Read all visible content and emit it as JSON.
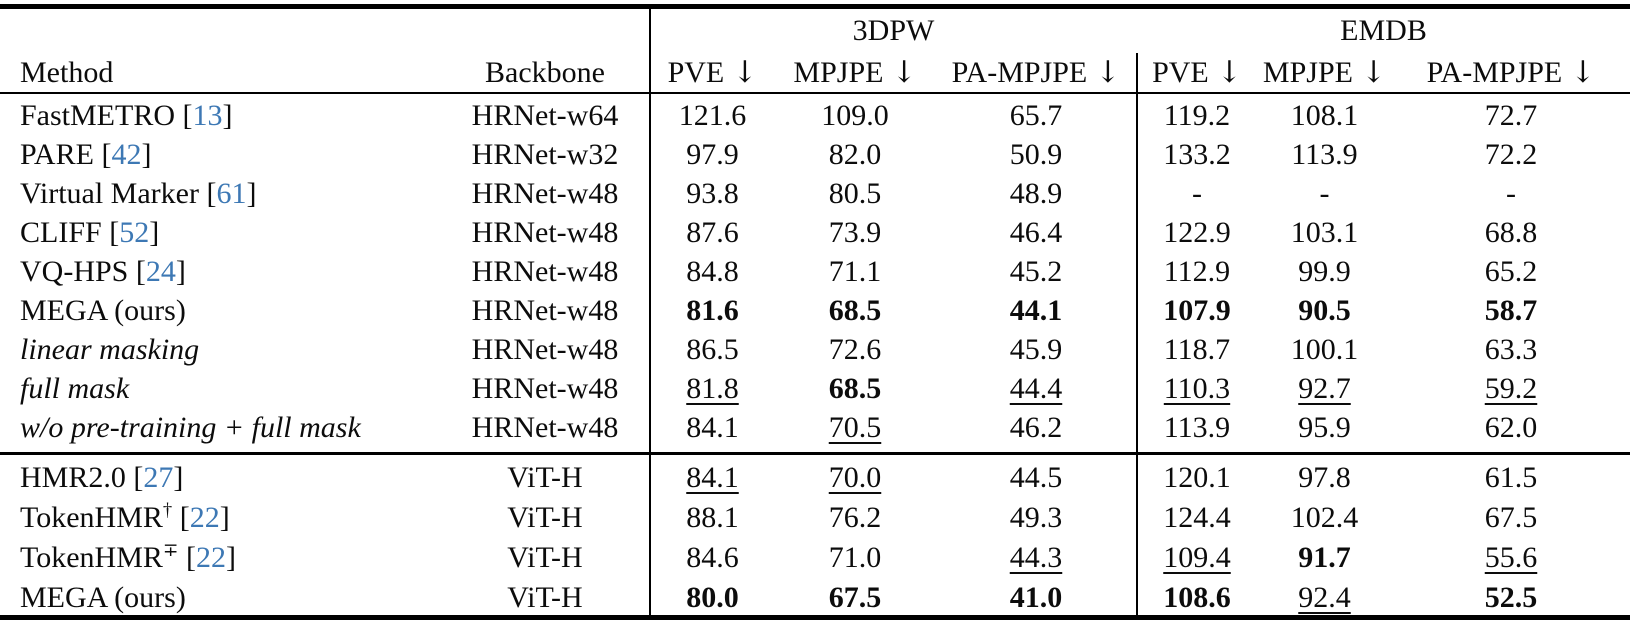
{
  "colors": {
    "citation_link": "#3d78b4",
    "text": "#0c0c0c",
    "background": "#ffffff",
    "rule": "#000000"
  },
  "table": {
    "group_headers": [
      {
        "label": "3DPW"
      },
      {
        "label": "EMDB"
      }
    ],
    "columns": {
      "method": "Method",
      "backbone": "Backbone",
      "down_arrow": "↓",
      "metric_labels": [
        "PVE",
        "MPJPE",
        "PA-MPJPE",
        "PVE",
        "MPJPE",
        "PA-MPJPE"
      ]
    },
    "sections": [
      {
        "rows": [
          {
            "method": "FastMETRO",
            "cite": "13",
            "backbone": "HRNet-w64",
            "values": [
              "121.6",
              "109.0",
              "65.7",
              "119.2",
              "108.1",
              "72.7"
            ],
            "styles": [
              "n",
              "n",
              "n",
              "n",
              "n",
              "n"
            ]
          },
          {
            "method": "PARE",
            "cite": "42",
            "backbone": "HRNet-w32",
            "values": [
              "97.9",
              "82.0",
              "50.9",
              "133.2",
              "113.9",
              "72.2"
            ],
            "styles": [
              "n",
              "n",
              "n",
              "n",
              "n",
              "n"
            ]
          },
          {
            "method": "Virtual Marker",
            "cite": "61",
            "backbone": "HRNet-w48",
            "values": [
              "93.8",
              "80.5",
              "48.9",
              "-",
              "-",
              "-"
            ],
            "styles": [
              "n",
              "n",
              "n",
              "n",
              "n",
              "n"
            ]
          },
          {
            "method": "CLIFF",
            "cite": "52",
            "backbone": "HRNet-w48",
            "values": [
              "87.6",
              "73.9",
              "46.4",
              "122.9",
              "103.1",
              "68.8"
            ],
            "styles": [
              "n",
              "n",
              "n",
              "n",
              "n",
              "n"
            ]
          },
          {
            "method": "VQ-HPS",
            "cite": "24",
            "backbone": "HRNet-w48",
            "values": [
              "84.8",
              "71.1",
              "45.2",
              "112.9",
              "99.9",
              "65.2"
            ],
            "styles": [
              "n",
              "n",
              "n",
              "n",
              "n",
              "n"
            ]
          },
          {
            "method": "MEGA (ours)",
            "backbone": "HRNet-w48",
            "values": [
              "81.6",
              "68.5",
              "44.1",
              "107.9",
              "90.5",
              "58.7"
            ],
            "styles": [
              "b",
              "b",
              "b",
              "b",
              "b",
              "b"
            ]
          },
          {
            "method": "linear masking",
            "italic": true,
            "indent": true,
            "backbone": "HRNet-w48",
            "values": [
              "86.5",
              "72.6",
              "45.9",
              "118.7",
              "100.1",
              "63.3"
            ],
            "styles": [
              "n",
              "n",
              "n",
              "n",
              "n",
              "n"
            ]
          },
          {
            "method": "full mask",
            "italic": true,
            "indent": true,
            "backbone": "HRNet-w48",
            "values": [
              "81.8",
              "68.5",
              "44.4",
              "110.3",
              "92.7",
              "59.2"
            ],
            "styles": [
              "u",
              "b",
              "u",
              "u",
              "u",
              "u"
            ]
          },
          {
            "method": "w/o pre-training + full mask",
            "italic": true,
            "indent": true,
            "backbone": "HRNet-w48",
            "values": [
              "84.1",
              "70.5",
              "46.2",
              "113.9",
              "95.9",
              "62.0"
            ],
            "styles": [
              "n",
              "u",
              "n",
              "n",
              "n",
              "n"
            ]
          }
        ]
      },
      {
        "rows": [
          {
            "method": "HMR2.0",
            "cite": "27",
            "backbone": "ViT-H",
            "values": [
              "84.1",
              "70.0",
              "44.5",
              "120.1",
              "97.8",
              "61.5"
            ],
            "styles": [
              "u",
              "u",
              "n",
              "n",
              "n",
              "n"
            ]
          },
          {
            "method": "TokenHMR",
            "sup": "†",
            "cite": "22",
            "backbone": "ViT-H",
            "values": [
              "88.1",
              "76.2",
              "49.3",
              "124.4",
              "102.4",
              "67.5"
            ],
            "styles": [
              "n",
              "n",
              "n",
              "n",
              "n",
              "n"
            ]
          },
          {
            "method": "TokenHMR",
            "sup": "∓",
            "cite": "22",
            "backbone": "ViT-H",
            "values": [
              "84.6",
              "71.0",
              "44.3",
              "109.4",
              "91.7",
              "55.6"
            ],
            "styles": [
              "n",
              "n",
              "u",
              "u",
              "b",
              "u"
            ]
          },
          {
            "method": "MEGA (ours)",
            "backbone": "ViT-H",
            "values": [
              "80.0",
              "67.5",
              "41.0",
              "108.6",
              "92.4",
              "52.5"
            ],
            "styles": [
              "b",
              "b",
              "b",
              "b",
              "u",
              "b"
            ]
          }
        ]
      }
    ]
  }
}
